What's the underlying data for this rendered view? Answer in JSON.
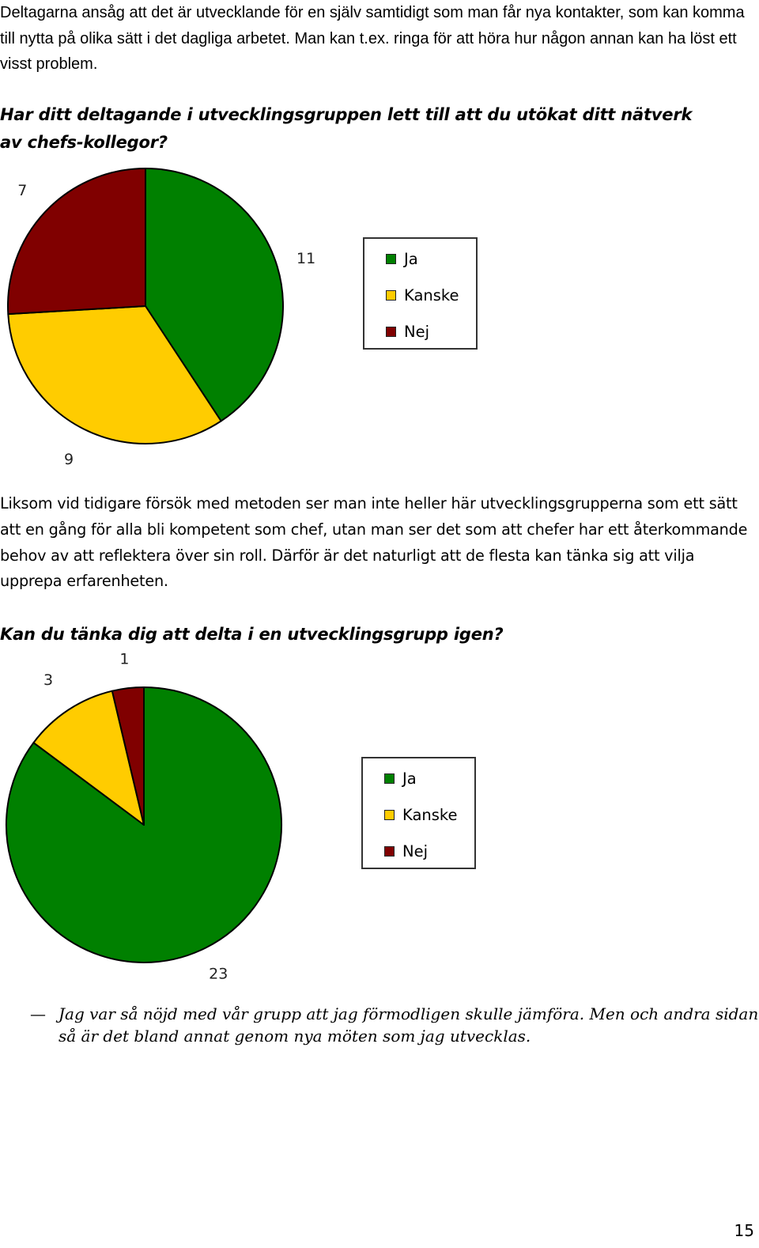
{
  "intro_text": "Deltagarna ansåg att det är utvecklande för en själv samtidigt som man får nya kontakter, som kan komma till nytta på olika sätt i det dagliga arbetet. Man kan t.ex. ringa för att höra hur någon annan kan ha löst ett visst problem.",
  "question1": "Har ditt deltagande i utvecklingsgruppen lett till att du utökat ditt nätverk av chefs-kollegor?",
  "middle_text": "Liksom vid tidigare försök med metoden ser man inte heller här utvecklingsgrupperna som ett sätt att en gång för alla bli kompetent som chef, utan man ser det som att chefer har ett återkommande behov av att reflektera över sin roll. Därför är det naturligt att de flesta kan tänka sig att vilja upprepa erfarenheten.",
  "question2": "Kan du tänka dig att delta i en utvecklingsgrupp igen?",
  "quote": {
    "dash": "—",
    "text": "Jag var så nöjd med vår grupp att jag förmodligen skulle jämföra. Men och andra sidan så är det bland annat genom nya möten som jag utvecklas."
  },
  "page_number": "15",
  "chart_data": [
    {
      "type": "pie",
      "categories": [
        "Ja",
        "Kanske",
        "Nej"
      ],
      "values": [
        11,
        9,
        7
      ],
      "colors": [
        "#008000",
        "#FFCC00",
        "#800000"
      ],
      "legend": [
        "Ja",
        "Kanske",
        "Nej"
      ],
      "legend_position": "right"
    },
    {
      "type": "pie",
      "categories": [
        "Ja",
        "Kanske",
        "Nej"
      ],
      "values": [
        23,
        3,
        1
      ],
      "colors": [
        "#008000",
        "#FFCC00",
        "#800000"
      ],
      "legend": [
        "Ja",
        "Kanske",
        "Nej"
      ],
      "legend_position": "right"
    }
  ]
}
